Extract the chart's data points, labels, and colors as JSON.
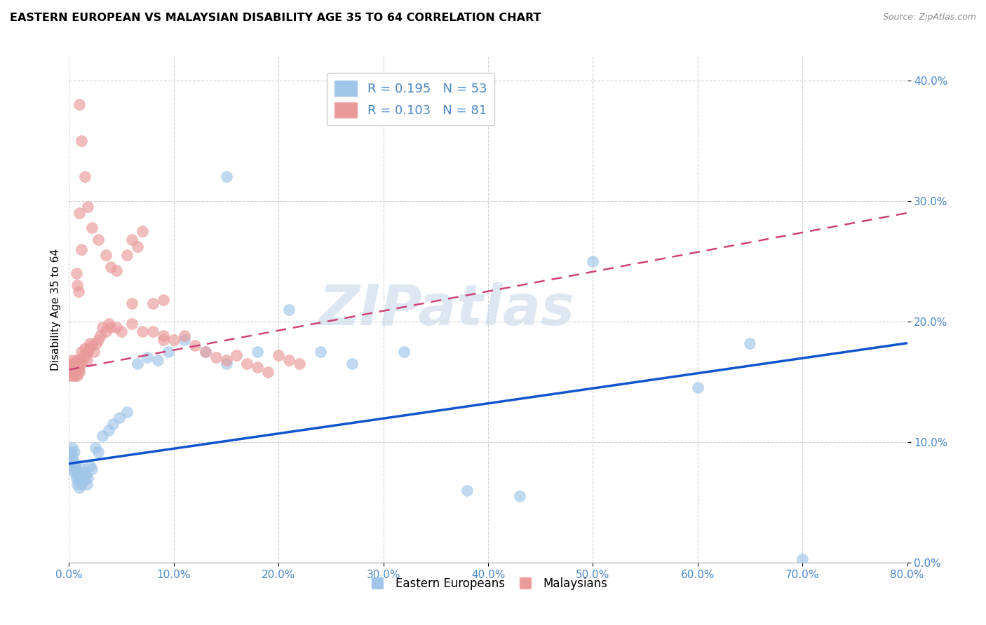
{
  "title": "EASTERN EUROPEAN VS MALAYSIAN DISABILITY AGE 35 TO 64 CORRELATION CHART",
  "source": "Source: ZipAtlas.com",
  "ylabel": "Disability Age 35 to 64",
  "xlim": [
    0.0,
    0.8
  ],
  "ylim": [
    0.0,
    0.42
  ],
  "xticks": [
    0.0,
    0.1,
    0.2,
    0.3,
    0.4,
    0.5,
    0.6,
    0.7,
    0.8
  ],
  "yticks": [
    0.0,
    0.1,
    0.2,
    0.3,
    0.4
  ],
  "xtick_labels": [
    "0.0%",
    "10.0%",
    "20.0%",
    "30.0%",
    "40.0%",
    "50.0%",
    "60.0%",
    "70.0%",
    "80.0%"
  ],
  "ytick_labels": [
    "0.0%",
    "10.0%",
    "20.0%",
    "30.0%",
    "40.0%"
  ],
  "blue_color": "#9fc5e8",
  "pink_color": "#ea9999",
  "trend_blue": "#1155cc",
  "trend_pink": "#cc4477",
  "legend_R_blue": "0.195",
  "legend_N_blue": "53",
  "legend_R_pink": "0.103",
  "legend_N_pink": "81",
  "blue_x": [
    0.001,
    0.002,
    0.002,
    0.003,
    0.003,
    0.004,
    0.004,
    0.005,
    0.005,
    0.006,
    0.006,
    0.007,
    0.008,
    0.008,
    0.009,
    0.01,
    0.01,
    0.011,
    0.012,
    0.013,
    0.014,
    0.015,
    0.016,
    0.017,
    0.018,
    0.02,
    0.022,
    0.025,
    0.028,
    0.032,
    0.038,
    0.042,
    0.048,
    0.055,
    0.065,
    0.075,
    0.085,
    0.095,
    0.11,
    0.13,
    0.15,
    0.18,
    0.21,
    0.24,
    0.27,
    0.32,
    0.38,
    0.43,
    0.5,
    0.6,
    0.65,
    0.7,
    0.15
  ],
  "blue_y": [
    0.09,
    0.082,
    0.092,
    0.088,
    0.095,
    0.078,
    0.085,
    0.075,
    0.092,
    0.082,
    0.078,
    0.07,
    0.065,
    0.072,
    0.068,
    0.08,
    0.062,
    0.075,
    0.065,
    0.07,
    0.068,
    0.075,
    0.072,
    0.065,
    0.07,
    0.08,
    0.078,
    0.095,
    0.092,
    0.105,
    0.11,
    0.115,
    0.12,
    0.125,
    0.165,
    0.17,
    0.168,
    0.175,
    0.185,
    0.175,
    0.165,
    0.175,
    0.21,
    0.175,
    0.165,
    0.175,
    0.06,
    0.055,
    0.25,
    0.145,
    0.182,
    0.003,
    0.32
  ],
  "pink_x": [
    0.001,
    0.001,
    0.002,
    0.002,
    0.003,
    0.003,
    0.004,
    0.004,
    0.005,
    0.005,
    0.005,
    0.006,
    0.006,
    0.007,
    0.007,
    0.008,
    0.008,
    0.009,
    0.009,
    0.01,
    0.01,
    0.011,
    0.012,
    0.013,
    0.014,
    0.015,
    0.016,
    0.017,
    0.018,
    0.019,
    0.02,
    0.022,
    0.024,
    0.026,
    0.028,
    0.03,
    0.032,
    0.035,
    0.038,
    0.04,
    0.045,
    0.05,
    0.055,
    0.06,
    0.065,
    0.07,
    0.08,
    0.09,
    0.1,
    0.11,
    0.12,
    0.13,
    0.14,
    0.15,
    0.16,
    0.17,
    0.18,
    0.19,
    0.2,
    0.21,
    0.22,
    0.04,
    0.06,
    0.08,
    0.09,
    0.01,
    0.012,
    0.015,
    0.018,
    0.022,
    0.028,
    0.035,
    0.045,
    0.01,
    0.012,
    0.007,
    0.008,
    0.009,
    0.06,
    0.07,
    0.09
  ],
  "pink_y": [
    0.155,
    0.162,
    0.158,
    0.165,
    0.16,
    0.168,
    0.155,
    0.162,
    0.158,
    0.165,
    0.16,
    0.155,
    0.162,
    0.158,
    0.168,
    0.155,
    0.162,
    0.16,
    0.168,
    0.162,
    0.158,
    0.165,
    0.175,
    0.168,
    0.172,
    0.178,
    0.172,
    0.168,
    0.175,
    0.178,
    0.182,
    0.18,
    0.175,
    0.182,
    0.185,
    0.188,
    0.195,
    0.192,
    0.198,
    0.195,
    0.195,
    0.192,
    0.255,
    0.268,
    0.262,
    0.275,
    0.192,
    0.188,
    0.185,
    0.188,
    0.18,
    0.175,
    0.17,
    0.168,
    0.172,
    0.165,
    0.162,
    0.158,
    0.172,
    0.168,
    0.165,
    0.245,
    0.215,
    0.215,
    0.218,
    0.38,
    0.35,
    0.32,
    0.295,
    0.278,
    0.268,
    0.255,
    0.242,
    0.29,
    0.26,
    0.24,
    0.23,
    0.225,
    0.198,
    0.192,
    0.185
  ],
  "watermark_text": "ZIPatlas",
  "watermark_color": "#c8d8e8",
  "background_color": "#ffffff"
}
